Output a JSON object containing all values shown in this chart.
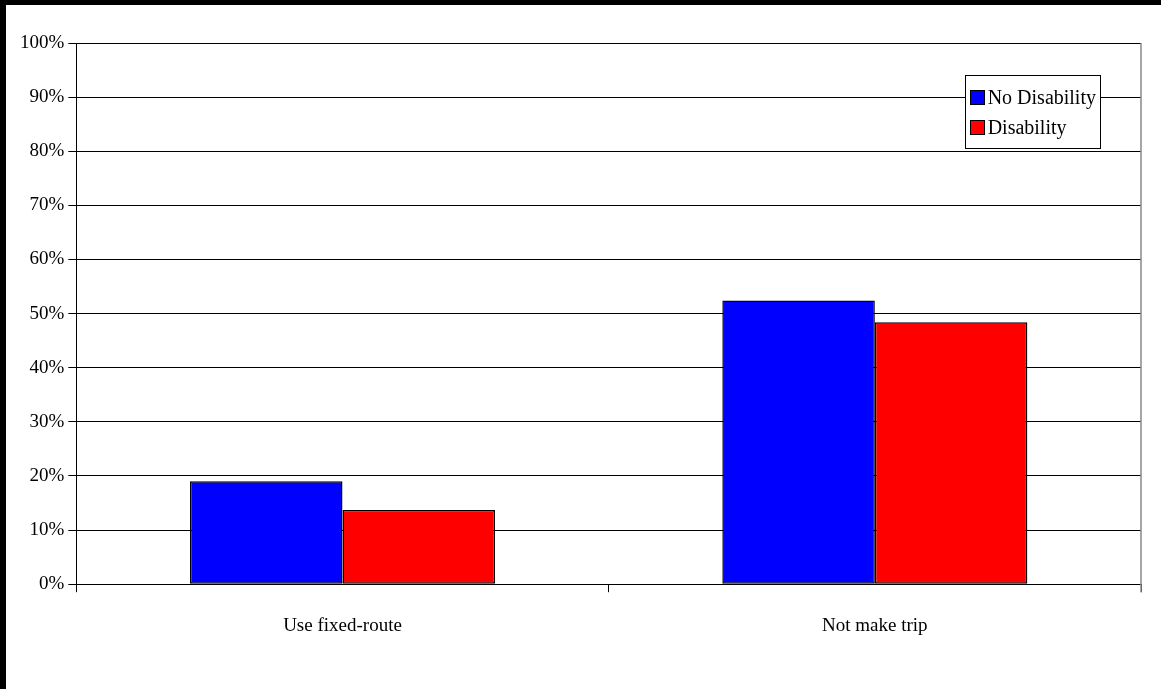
{
  "chart_data": {
    "type": "bar",
    "categories": [
      "Use fixed-route",
      "Not make trip"
    ],
    "series": [
      {
        "name": "No Disability",
        "color": "#0000ff",
        "values": [
          19.0,
          52.4
        ]
      },
      {
        "name": "Disability",
        "color": "#ff0000",
        "values": [
          13.7,
          48.4
        ]
      }
    ],
    "ylim": [
      0,
      100
    ],
    "yticks": [
      {
        "value": 0,
        "label": "0%"
      },
      {
        "value": 10,
        "label": "10%"
      },
      {
        "value": 20,
        "label": "20%"
      },
      {
        "value": 30,
        "label": "30%"
      },
      {
        "value": 40,
        "label": "40%"
      },
      {
        "value": 50,
        "label": "50%"
      },
      {
        "value": 60,
        "label": "60%"
      },
      {
        "value": 70,
        "label": "70%"
      },
      {
        "value": 80,
        "label": "80%"
      },
      {
        "value": 90,
        "label": "90%"
      },
      {
        "value": 100,
        "label": "100%"
      }
    ],
    "grid": "y",
    "legend": "top right"
  }
}
